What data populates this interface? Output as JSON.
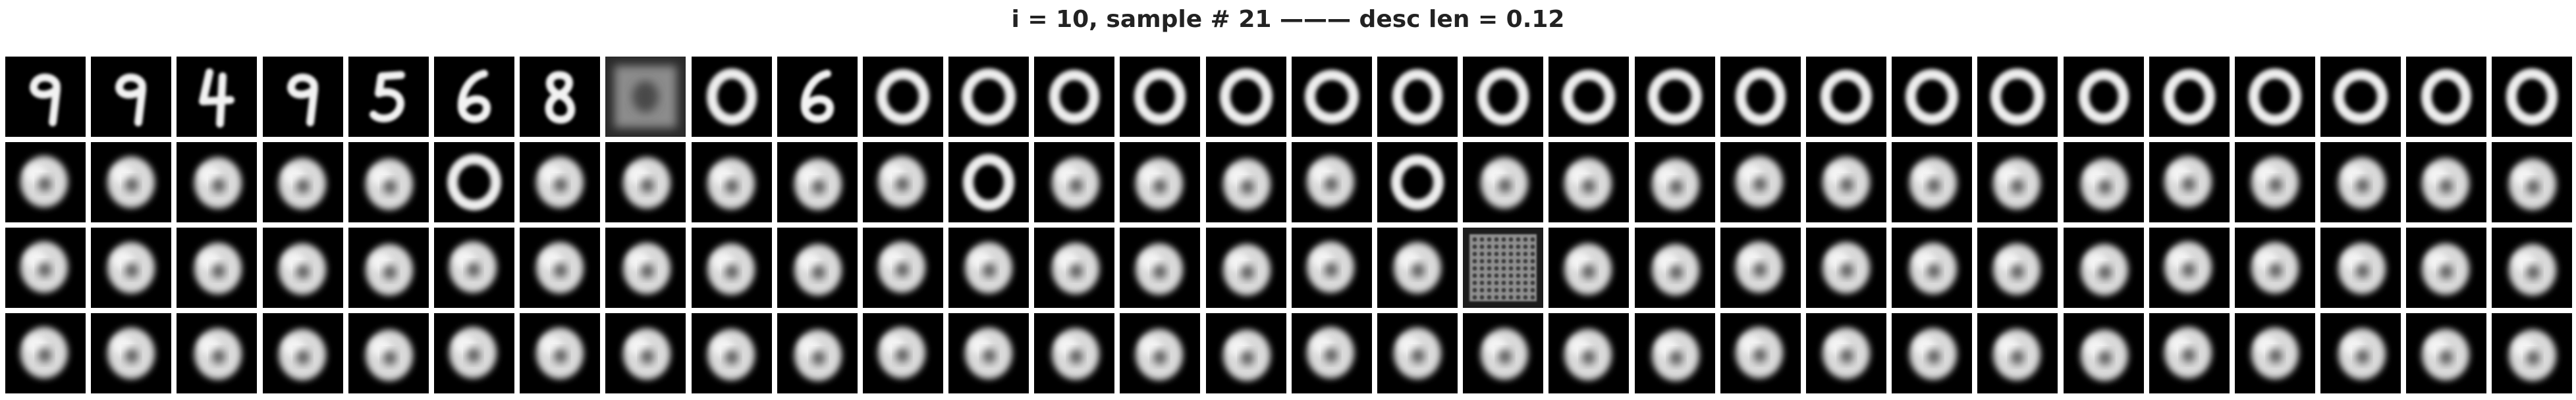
{
  "title": "i = 10, sample # 21 ——— desc len = 0.12",
  "grid": {
    "rows": 4,
    "cols": 30,
    "cells": [
      [
        "digit-9",
        "digit-9",
        "digit-4",
        "digit-9",
        "digit-5",
        "digit-6",
        "digit-8",
        "noise-square",
        "digit-0",
        "digit-6",
        "digit-0",
        "digit-0",
        "digit-0",
        "digit-0",
        "digit-0",
        "digit-0",
        "digit-0",
        "digit-0",
        "digit-0",
        "digit-0",
        "digit-0",
        "digit-0",
        "digit-0",
        "digit-0",
        "digit-0",
        "digit-0",
        "digit-0",
        "digit-0",
        "digit-0",
        "digit-0"
      ],
      [
        "blob",
        "blob",
        "blob",
        "blob",
        "blob",
        "digit-0",
        "blob",
        "blob",
        "blob",
        "blob",
        "blob",
        "digit-0",
        "blob",
        "blob",
        "blob",
        "blob",
        "digit-0",
        "blob",
        "blob",
        "blob",
        "blob",
        "blob",
        "blob",
        "blob",
        "blob",
        "blob",
        "blob",
        "blob",
        "blob",
        "blob"
      ],
      [
        "blob",
        "blob",
        "blob",
        "blob",
        "blob",
        "blob",
        "blob",
        "blob",
        "blob",
        "blob",
        "blob",
        "blob",
        "blob",
        "blob",
        "blob",
        "blob",
        "blob",
        "checker",
        "blob",
        "blob",
        "blob",
        "blob",
        "blob",
        "blob",
        "blob",
        "blob",
        "blob",
        "blob",
        "blob",
        "blob"
      ],
      [
        "blob",
        "blob",
        "blob",
        "blob",
        "blob",
        "blob",
        "blob",
        "blob",
        "blob",
        "blob",
        "blob",
        "blob",
        "blob",
        "blob",
        "blob",
        "blob",
        "blob",
        "blob",
        "blob",
        "blob",
        "blob",
        "blob",
        "blob",
        "blob",
        "blob",
        "blob",
        "blob",
        "blob",
        "blob",
        "blob"
      ]
    ]
  }
}
